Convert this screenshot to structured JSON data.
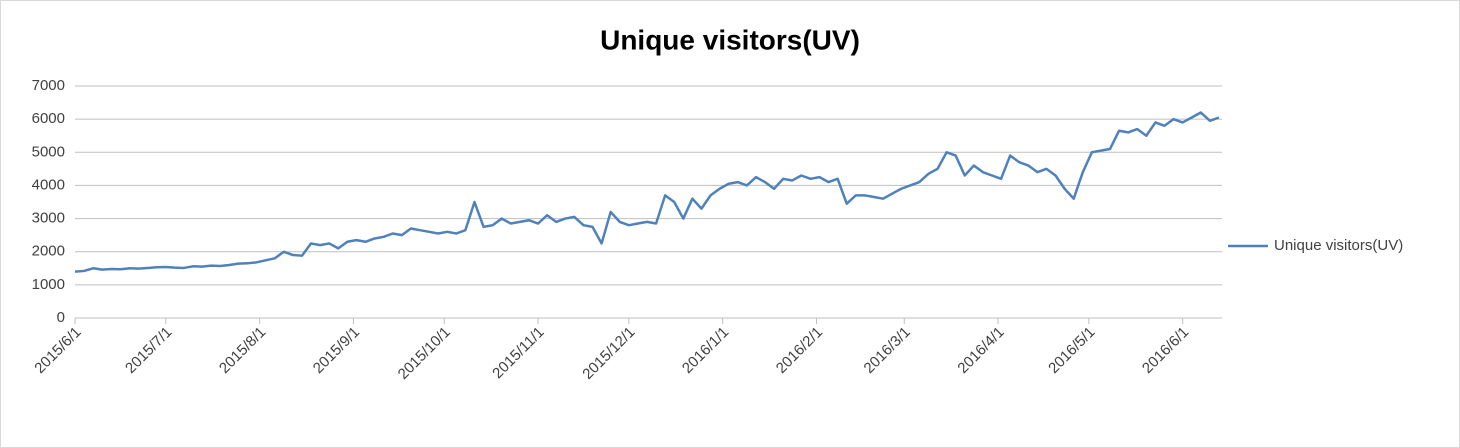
{
  "chart_data": {
    "type": "line",
    "title": "Unique visitors(UV)",
    "x": [
      "2015/6/1",
      "2015/6/4",
      "2015/6/7",
      "2015/6/10",
      "2015/6/13",
      "2015/6/16",
      "2015/6/19",
      "2015/6/22",
      "2015/6/25",
      "2015/6/28",
      "2015/7/1",
      "2015/7/4",
      "2015/7/7",
      "2015/7/10",
      "2015/7/13",
      "2015/7/16",
      "2015/7/19",
      "2015/7/22",
      "2015/7/25",
      "2015/7/28",
      "2015/7/31",
      "2015/8/3",
      "2015/8/6",
      "2015/8/9",
      "2015/8/12",
      "2015/8/15",
      "2015/8/18",
      "2015/8/21",
      "2015/8/24",
      "2015/8/27",
      "2015/8/30",
      "2015/9/2",
      "2015/9/5",
      "2015/9/8",
      "2015/9/11",
      "2015/9/14",
      "2015/9/17",
      "2015/9/20",
      "2015/9/23",
      "2015/9/26",
      "2015/9/29",
      "2015/10/2",
      "2015/10/5",
      "2015/10/8",
      "2015/10/11",
      "2015/10/14",
      "2015/10/17",
      "2015/10/20",
      "2015/10/23",
      "2015/10/26",
      "2015/10/29",
      "2015/11/1",
      "2015/11/4",
      "2015/11/7",
      "2015/11/10",
      "2015/11/13",
      "2015/11/16",
      "2015/11/19",
      "2015/11/22",
      "2015/11/25",
      "2015/11/28",
      "2015/12/1",
      "2015/12/4",
      "2015/12/7",
      "2015/12/10",
      "2015/12/13",
      "2015/12/16",
      "2015/12/19",
      "2015/12/22",
      "2015/12/25",
      "2015/12/28",
      "2015/12/31",
      "2016/1/3",
      "2016/1/6",
      "2016/1/9",
      "2016/1/12",
      "2016/1/15",
      "2016/1/18",
      "2016/1/21",
      "2016/1/24",
      "2016/1/27",
      "2016/1/30",
      "2016/2/2",
      "2016/2/5",
      "2016/2/8",
      "2016/2/11",
      "2016/2/14",
      "2016/2/17",
      "2016/2/20",
      "2016/2/23",
      "2016/2/26",
      "2016/2/29",
      "2016/3/3",
      "2016/3/6",
      "2016/3/9",
      "2016/3/12",
      "2016/3/15",
      "2016/3/18",
      "2016/3/21",
      "2016/3/24",
      "2016/3/27",
      "2016/3/30",
      "2016/4/2",
      "2016/4/5",
      "2016/4/8",
      "2016/4/11",
      "2016/4/14",
      "2016/4/17",
      "2016/4/20",
      "2016/4/23",
      "2016/4/26",
      "2016/4/29",
      "2016/5/2",
      "2016/5/5",
      "2016/5/8",
      "2016/5/11",
      "2016/5/14",
      "2016/5/17",
      "2016/5/20",
      "2016/5/23",
      "2016/5/26",
      "2016/5/29",
      "2016/6/1",
      "2016/6/4",
      "2016/6/7",
      "2016/6/10",
      "2016/6/13"
    ],
    "series": [
      {
        "name": "Unique visitors(UV)",
        "color": "#4f81bd",
        "values": [
          1400,
          1420,
          1500,
          1460,
          1480,
          1470,
          1500,
          1490,
          1510,
          1530,
          1540,
          1520,
          1510,
          1560,
          1550,
          1580,
          1570,
          1600,
          1640,
          1650,
          1680,
          1740,
          1800,
          2000,
          1900,
          1880,
          2250,
          2200,
          2250,
          2100,
          2300,
          2350,
          2300,
          2400,
          2450,
          2550,
          2500,
          2700,
          2650,
          2600,
          2550,
          2600,
          2550,
          2650,
          3500,
          2750,
          2800,
          3000,
          2850,
          2900,
          2950,
          2850,
          3100,
          2900,
          3000,
          3050,
          2800,
          2750,
          2250,
          3200,
          2900,
          2800,
          2850,
          2900,
          2850,
          3700,
          3500,
          3000,
          3600,
          3300,
          3700,
          3900,
          4050,
          4100,
          4000,
          4250,
          4100,
          3900,
          4200,
          4150,
          4300,
          4200,
          4250,
          4100,
          4200,
          3450,
          3700,
          3700,
          3650,
          3600,
          3750,
          3900,
          4000,
          4100,
          4350,
          4500,
          5000,
          4900,
          4300,
          4600,
          4400,
          4300,
          4200,
          4900,
          4700,
          4600,
          4400,
          4500,
          4300,
          3900,
          3600,
          4400,
          5000,
          5050,
          5100,
          5650,
          5600,
          5700,
          5500,
          5900,
          5800,
          6000,
          5900,
          6050,
          6200,
          5950,
          6050
        ]
      }
    ],
    "xlim": [
      "2015/6/1",
      "2016/6/14"
    ],
    "xticks": [
      "2015/6/1",
      "2015/7/1",
      "2015/8/1",
      "2015/9/1",
      "2015/10/1",
      "2015/11/1",
      "2015/12/1",
      "2016/1/1",
      "2016/2/1",
      "2016/3/1",
      "2016/4/1",
      "2016/5/1",
      "2016/6/1"
    ],
    "ylim": [
      0,
      7000
    ],
    "yticks": [
      0,
      1000,
      2000,
      3000,
      4000,
      5000,
      6000,
      7000
    ],
    "grid": true,
    "legend": "right"
  }
}
